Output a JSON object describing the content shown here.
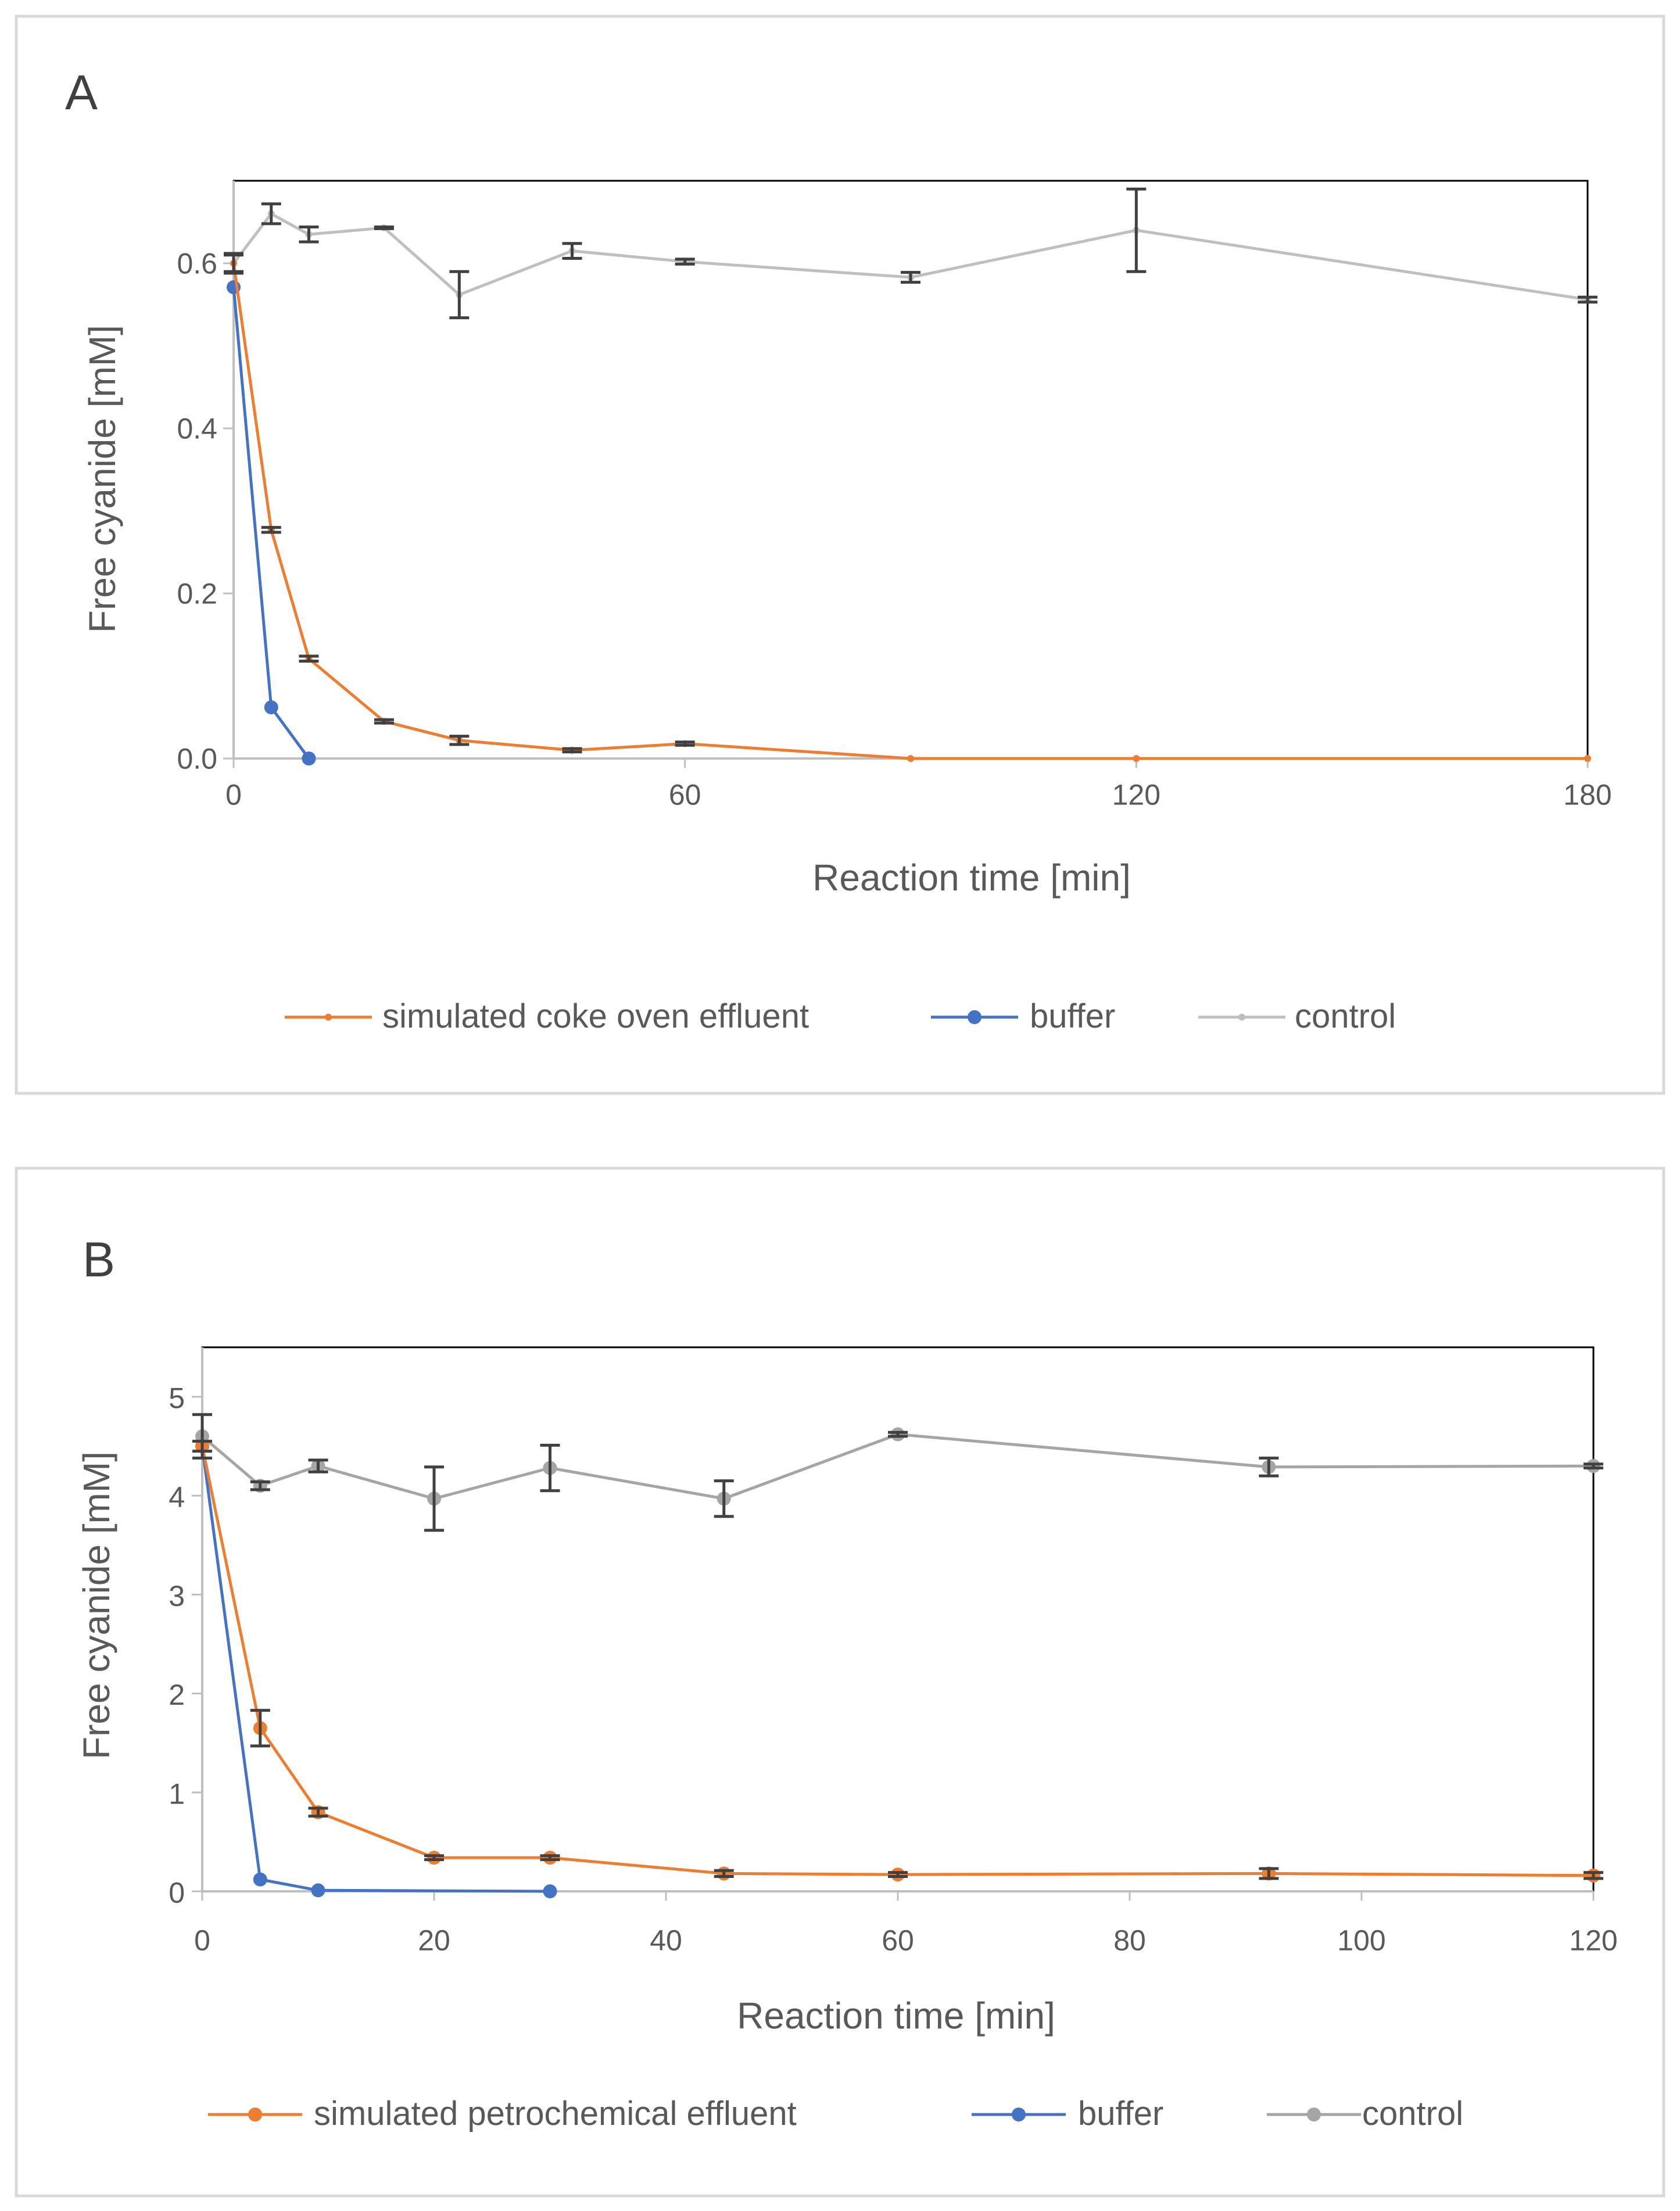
{
  "chart_data": [
    {
      "type": "line",
      "panel_label": "A",
      "title": "",
      "xlabel": "Reaction time [min]",
      "ylabel": "Free cyanide  [mM]",
      "xlim": [
        0,
        180
      ],
      "ylim": [
        0,
        0.7
      ],
      "xticks": [
        0,
        60,
        120,
        180
      ],
      "xtick_labels": [
        "0",
        "60",
        "120",
        "180"
      ],
      "yticks": [
        0,
        0.2,
        0.4,
        0.6
      ],
      "ytick_labels": [
        "0.0",
        "0.2",
        "0.4",
        "0.6"
      ],
      "legend_position": "bottom",
      "series": [
        {
          "name": "simulated coke oven effluent",
          "color": "#ED7D31",
          "marker": "small",
          "x": [
            0,
            5,
            10,
            20,
            30,
            45,
            60,
            90,
            120,
            180
          ],
          "y": [
            0.6,
            0.277,
            0.121,
            0.045,
            0.022,
            0.01,
            0.018,
            0.0,
            0.0,
            0.0
          ],
          "err": [
            0.01,
            0.003,
            0.003,
            0.002,
            0.005,
            0.002,
            0.002,
            0,
            0,
            0
          ]
        },
        {
          "name": "buffer",
          "color": "#4472C4",
          "marker": "large",
          "x": [
            0,
            5,
            10
          ],
          "y": [
            0.571,
            0.062,
            0.0
          ],
          "err": [
            0,
            0,
            0
          ]
        },
        {
          "name": "control",
          "color": "#BFBFBF",
          "marker": "small",
          "x": [
            0,
            5,
            10,
            20,
            30,
            45,
            60,
            90,
            120,
            180
          ],
          "y": [
            0.6,
            0.66,
            0.635,
            0.643,
            0.562,
            0.615,
            0.602,
            0.583,
            0.64,
            0.556
          ],
          "err": [
            0.012,
            0.012,
            0.009,
            0.001,
            0.028,
            0.009,
            0.003,
            0.006,
            0.05,
            0.003
          ]
        }
      ]
    },
    {
      "type": "line",
      "panel_label": "B",
      "title": "",
      "xlabel": "Reaction time [min]",
      "ylabel": "Free cyanide  [mM]",
      "xlim": [
        0,
        120
      ],
      "ylim": [
        0,
        5.5
      ],
      "xticks": [
        0,
        20,
        40,
        60,
        80,
        100,
        120
      ],
      "xtick_labels": [
        "0",
        "20",
        "40",
        "60",
        "80",
        "100",
        "120"
      ],
      "yticks": [
        0,
        1,
        2,
        3,
        4,
        5
      ],
      "ytick_labels": [
        "0",
        "1",
        "2",
        "3",
        "4",
        "5"
      ],
      "legend_position": "bottom",
      "series": [
        {
          "name": "simulated petrochemical effluent",
          "color": "#ED7D31",
          "marker": "large",
          "x": [
            0,
            5,
            10,
            20,
            30,
            45,
            60,
            92,
            120
          ],
          "y": [
            4.5,
            1.65,
            0.8,
            0.34,
            0.34,
            0.18,
            0.17,
            0.18,
            0.16
          ],
          "err": [
            0.05,
            0.18,
            0.04,
            0.02,
            0.02,
            0.03,
            0.02,
            0.05,
            0.03
          ]
        },
        {
          "name": "buffer",
          "color": "#4472C4",
          "marker": "large",
          "x": [
            0,
            5,
            10,
            30
          ],
          "y": [
            4.5,
            0.12,
            0.01,
            0.0
          ],
          "err": [
            0,
            0,
            0,
            0
          ]
        },
        {
          "name": "control",
          "color": "#A5A5A5",
          "marker": "large",
          "x": [
            0,
            5,
            10,
            20,
            30,
            45,
            60,
            92,
            120
          ],
          "y": [
            4.6,
            4.1,
            4.3,
            3.97,
            4.28,
            3.97,
            4.62,
            4.29,
            4.3
          ],
          "err": [
            0.22,
            0.04,
            0.06,
            0.32,
            0.23,
            0.18,
            0.02,
            0.09,
            0.02
          ]
        }
      ]
    }
  ]
}
